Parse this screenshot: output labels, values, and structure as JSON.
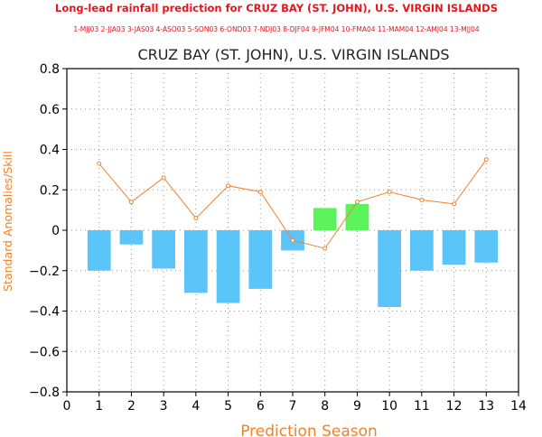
{
  "header": {
    "title": "Long-lead rainfall prediction for CRUZ BAY (ST. JOHN), U.S. VIRGIN ISLANDS",
    "season_key": "1-MJJ03 2-JJA03 3-JAS03 4-ASO03 5-SON03 6-OND03 7-NDJ03 8-DJF04 9-JFM04 10-FMA04 11-MAM04 12-AMJ04 13-MJJ04"
  },
  "colors": {
    "negative_bar": "#5bc4f8",
    "positive_bar": "#5cf25c",
    "skill_line": "#f0822a",
    "header_text": "#e8141c",
    "grid": "#9a9a9a"
  },
  "chart_data": {
    "type": "bar",
    "title": "CRUZ BAY (ST. JOHN), U.S. VIRGIN ISLANDS",
    "xlabel": "Prediction Season",
    "ylabel": "Standard Anomalies/Skill",
    "xlim": [
      0,
      14
    ],
    "ylim": [
      -0.8,
      0.8
    ],
    "xticks": [
      0,
      1,
      2,
      3,
      4,
      5,
      6,
      7,
      8,
      9,
      10,
      11,
      12,
      13,
      14
    ],
    "yticks": [
      -0.8,
      -0.6,
      -0.4,
      -0.2,
      0,
      0.2,
      0.4,
      0.6,
      0.8
    ],
    "ytick_labels": [
      "−0.8",
      "−0.6",
      "−0.4",
      "−0.2",
      "0",
      "0.2",
      "0.4",
      "0.6",
      "0.8"
    ],
    "grid": true,
    "x": [
      1,
      2,
      3,
      4,
      5,
      6,
      7,
      8,
      9,
      10,
      11,
      12,
      13
    ],
    "series": [
      {
        "type": "bar",
        "values": [
          -0.2,
          -0.07,
          -0.19,
          -0.31,
          -0.36,
          -0.29,
          -0.1,
          0.11,
          0.13,
          -0.38,
          -0.2,
          -0.17,
          -0.16
        ]
      },
      {
        "type": "line",
        "values": [
          0.33,
          0.14,
          0.26,
          0.06,
          0.22,
          0.19,
          -0.05,
          -0.09,
          0.14,
          0.19,
          0.15,
          0.13,
          0.35
        ]
      }
    ]
  }
}
